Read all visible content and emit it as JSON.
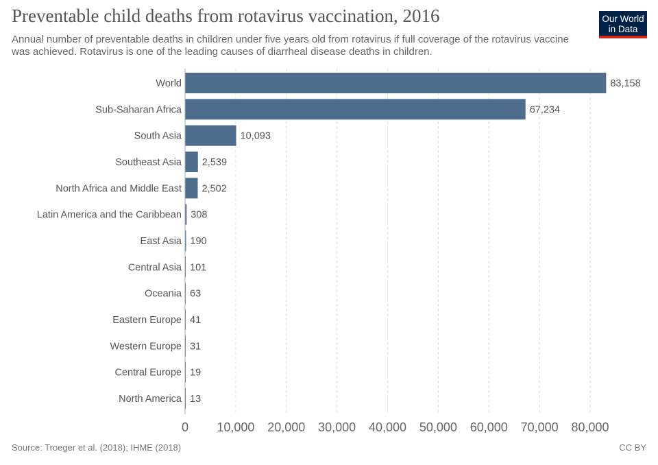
{
  "header": {
    "title": "Preventable child deaths from rotavirus vaccination, 2016",
    "subtitle": "Annual number of preventable deaths in children under five years old from rotavirus if full coverage of the rotavirus vaccine was achieved. Rotavirus is one of the leading causes of diarrheal disease deaths in children.",
    "logo_text": "Our World in Data"
  },
  "footer": {
    "source": "Source: Troeger et al. (2018); IHME (2018)",
    "license": "CC BY"
  },
  "colors": {
    "bar": "#4e6d8c",
    "logo_bg": "#002147",
    "logo_accent": "#ce261e"
  },
  "chart_data": {
    "type": "bar",
    "orientation": "horizontal",
    "title": "Preventable child deaths from rotavirus vaccination, 2016",
    "categories": [
      "World",
      "Sub-Saharan Africa",
      "South Asia",
      "Southeast Asia",
      "North Africa and Middle East",
      "Latin America and the Caribbean",
      "East Asia",
      "Central Asia",
      "Oceania",
      "Eastern Europe",
      "Western Europe",
      "Central Europe",
      "North America"
    ],
    "values": [
      83158,
      67234,
      10093,
      2539,
      2502,
      308,
      190,
      101,
      63,
      41,
      31,
      19,
      13
    ],
    "value_labels": [
      "83,158",
      "67,234",
      "10,093",
      "2,539",
      "2,502",
      "308",
      "190",
      "101",
      "63",
      "41",
      "31",
      "19",
      "13"
    ],
    "xlim": [
      0,
      80000
    ],
    "xticks": [
      0,
      10000,
      20000,
      30000,
      40000,
      50000,
      60000,
      70000,
      80000
    ],
    "xtick_labels": [
      "0",
      "10,000",
      "20,000",
      "30,000",
      "40,000",
      "50,000",
      "60,000",
      "70,000",
      "80,000"
    ],
    "grid": "vertical dashed"
  }
}
